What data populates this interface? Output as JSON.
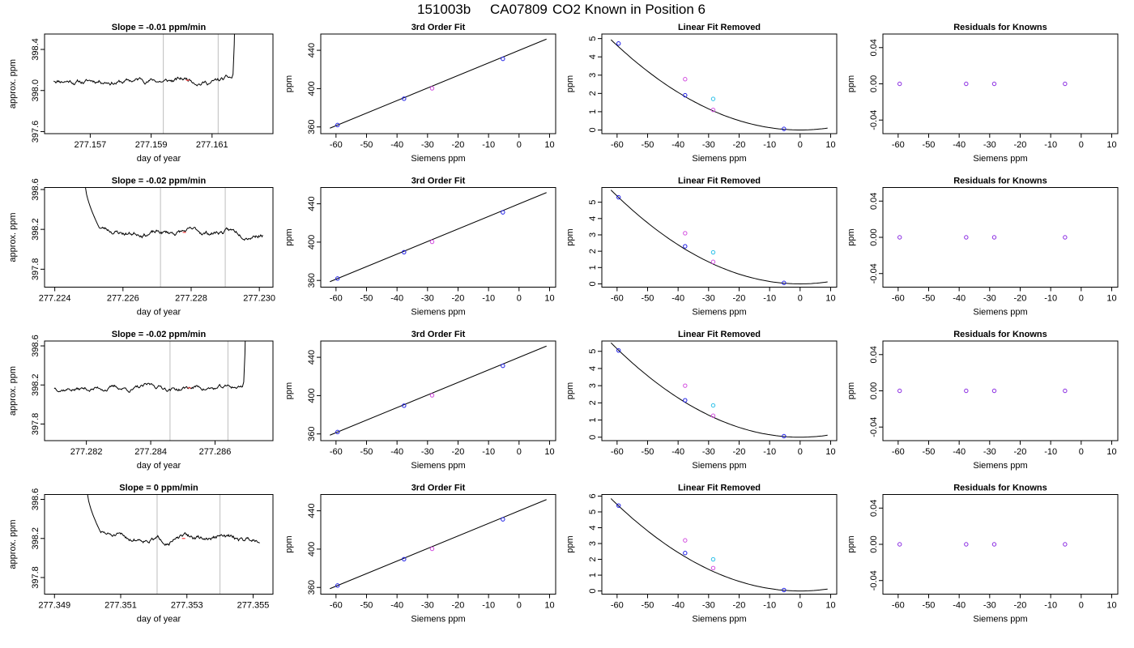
{
  "page": {
    "title_parts": [
      "151003b",
      "CA07809",
      "CO2 Known in Position  6"
    ]
  },
  "colors": {
    "point_blue": "#1f1fe6",
    "point_magenta": "#d34fe0",
    "point_cyan": "#2bc0e8",
    "point_purple": "#8a2be2",
    "point_red": "#ff4040",
    "time_line": "#000000",
    "vline": "#bdbdbd",
    "fit_line": "#000000"
  },
  "chart_data": [
    {
      "type": "line",
      "role": "timeseries",
      "row": 0,
      "title": "Slope =  -0.01  ppm/min",
      "xlabel": "day of year",
      "ylabel": "approx. ppm",
      "xlim": [
        277.1555,
        277.163
      ],
      "ylim": [
        397.58,
        398.55
      ],
      "xticks": [
        277.157,
        277.159,
        277.161
      ],
      "xtick_decimals": 3,
      "yticks": [
        397.6,
        398.0,
        398.4
      ],
      "ytick_decimals": 1,
      "x_start": 277.1558,
      "x_end": 277.1618,
      "baseline": 398.1,
      "vlines": [
        277.1594,
        277.1612
      ],
      "red_marks": [
        277.1602
      ],
      "end_spike": {
        "x_rise_start": 277.16165,
        "y_peak": 398.55
      },
      "start_spike": null,
      "seed": 11
    },
    {
      "type": "scatter",
      "role": "fit",
      "row": 0,
      "title": "3rd Order Fit",
      "xlabel": "Siemens ppm",
      "ylabel": "ppm",
      "xlim": [
        -65,
        12
      ],
      "ylim": [
        353,
        457
      ],
      "xticks": [
        -60,
        -50,
        -40,
        -30,
        -20,
        -10,
        0,
        10
      ],
      "yticks": [
        360,
        400,
        440
      ],
      "line": {
        "x": [
          -62,
          9
        ],
        "y": [
          358.7,
          451.7
        ]
      },
      "points": [
        {
          "x": -59.5,
          "y": 362.0,
          "color": "point_blue"
        },
        {
          "x": -37.7,
          "y": 389.5,
          "color": "point_blue"
        },
        {
          "x": -28.5,
          "y": 400.3,
          "color": "point_magenta"
        },
        {
          "x": -5.3,
          "y": 431.1,
          "color": "point_blue"
        }
      ]
    },
    {
      "type": "scatter",
      "role": "linear_removed",
      "row": 0,
      "title": "Linear Fit Removed",
      "xlabel": "Siemens ppm",
      "ylabel": "ppm",
      "xlim": [
        -65,
        12
      ],
      "ylim": [
        -0.2,
        5.25
      ],
      "xticks": [
        -60,
        -50,
        -40,
        -30,
        -20,
        -10,
        0,
        10
      ],
      "yticks": [
        0,
        1,
        2,
        3,
        4,
        5
      ],
      "curve": {
        "x0": 0,
        "a": 0.001285,
        "x_from": -62,
        "x_to": 9
      },
      "points": [
        {
          "x": -59.5,
          "y": 4.73,
          "color": "point_blue"
        },
        {
          "x": -37.7,
          "y": 1.9,
          "color": "point_blue"
        },
        {
          "x": -37.7,
          "y": 2.78,
          "color": "point_magenta"
        },
        {
          "x": -28.5,
          "y": 1.7,
          "color": "point_cyan"
        },
        {
          "x": -28.5,
          "y": 1.1,
          "color": "point_magenta"
        },
        {
          "x": -5.3,
          "y": 0.06,
          "color": "point_blue"
        }
      ]
    },
    {
      "type": "scatter",
      "role": "residuals",
      "row": 0,
      "title": "Residuals for Knowns",
      "xlabel": "Siemens ppm",
      "ylabel": "ppm",
      "xlim": [
        -65,
        12
      ],
      "ylim": [
        -0.055,
        0.055
      ],
      "xticks": [
        -60,
        -50,
        -40,
        -30,
        -20,
        -10,
        0,
        10
      ],
      "yticks": [
        -0.04,
        0.0,
        0.04
      ],
      "ytick_decimals": 2,
      "points": [
        {
          "x": -59.5,
          "y": 0,
          "color": "point_purple"
        },
        {
          "x": -37.7,
          "y": 0,
          "color": "point_purple"
        },
        {
          "x": -28.5,
          "y": 0,
          "color": "point_purple"
        },
        {
          "x": -5.3,
          "y": 0,
          "color": "point_purple"
        }
      ]
    },
    {
      "type": "line",
      "role": "timeseries",
      "row": 1,
      "title": "Slope =  -0.02  ppm/min",
      "xlabel": "day of year",
      "ylabel": "approx. ppm",
      "xlim": [
        277.2237,
        277.2304
      ],
      "ylim": [
        397.62,
        398.62
      ],
      "xticks": [
        277.224,
        277.226,
        277.228,
        277.23
      ],
      "xtick_decimals": 3,
      "yticks": [
        397.8,
        398.2,
        398.6
      ],
      "ytick_decimals": 1,
      "x_start": 277.2252,
      "x_end": 277.2301,
      "baseline": 398.17,
      "vlines": [
        277.2271,
        277.229
      ],
      "red_marks": [
        277.2278
      ],
      "end_spike": null,
      "start_spike": {
        "x_top": 277.2249,
        "y_top": 398.62,
        "x_bottom": 277.2253,
        "y_bottom": 398.22
      },
      "seed": 23
    },
    {
      "type": "scatter",
      "role": "fit",
      "row": 1,
      "title": "3rd Order Fit",
      "xlabel": "Siemens ppm",
      "ylabel": "ppm",
      "xlim": [
        -65,
        12
      ],
      "ylim": [
        353,
        457
      ],
      "xticks": [
        -60,
        -50,
        -40,
        -30,
        -20,
        -10,
        0,
        10
      ],
      "yticks": [
        360,
        400,
        440
      ],
      "line": {
        "x": [
          -62,
          9
        ],
        "y": [
          358.7,
          451.7
        ]
      },
      "points": [
        {
          "x": -59.5,
          "y": 362.0,
          "color": "point_blue"
        },
        {
          "x": -37.7,
          "y": 389.5,
          "color": "point_blue"
        },
        {
          "x": -28.5,
          "y": 400.3,
          "color": "point_magenta"
        },
        {
          "x": -5.3,
          "y": 431.1,
          "color": "point_blue"
        }
      ]
    },
    {
      "type": "scatter",
      "role": "linear_removed",
      "row": 1,
      "title": "Linear Fit Removed",
      "xlabel": "Siemens ppm",
      "ylabel": "ppm",
      "xlim": [
        -65,
        12
      ],
      "ylim": [
        -0.2,
        5.9
      ],
      "xticks": [
        -60,
        -50,
        -40,
        -30,
        -20,
        -10,
        0,
        10
      ],
      "yticks": [
        0,
        1,
        2,
        3,
        4,
        5
      ],
      "curve": {
        "x0": 0,
        "a": 0.001495,
        "x_from": -62,
        "x_to": 9
      },
      "points": [
        {
          "x": -59.5,
          "y": 5.3,
          "color": "point_blue"
        },
        {
          "x": -37.7,
          "y": 2.3,
          "color": "point_blue"
        },
        {
          "x": -37.7,
          "y": 3.1,
          "color": "point_magenta"
        },
        {
          "x": -28.5,
          "y": 1.93,
          "color": "point_cyan"
        },
        {
          "x": -28.5,
          "y": 1.35,
          "color": "point_magenta"
        },
        {
          "x": -5.3,
          "y": 0.06,
          "color": "point_blue"
        }
      ]
    },
    {
      "type": "scatter",
      "role": "residuals",
      "row": 1,
      "title": "Residuals for Knowns",
      "xlabel": "Siemens ppm",
      "ylabel": "ppm",
      "xlim": [
        -65,
        12
      ],
      "ylim": [
        -0.055,
        0.055
      ],
      "xticks": [
        -60,
        -50,
        -40,
        -30,
        -20,
        -10,
        0,
        10
      ],
      "yticks": [
        -0.04,
        0.0,
        0.04
      ],
      "ytick_decimals": 2,
      "points": [
        {
          "x": -59.5,
          "y": 0,
          "color": "point_purple"
        },
        {
          "x": -37.7,
          "y": 0,
          "color": "point_purple"
        },
        {
          "x": -28.5,
          "y": 0,
          "color": "point_purple"
        },
        {
          "x": -5.3,
          "y": 0,
          "color": "point_purple"
        }
      ]
    },
    {
      "type": "line",
      "role": "timeseries",
      "row": 2,
      "title": "Slope =  -0.02  ppm/min",
      "xlabel": "day of year",
      "ylabel": "approx. ppm",
      "xlim": [
        277.2807,
        277.2878
      ],
      "ylim": [
        397.63,
        398.65
      ],
      "xticks": [
        277.282,
        277.284,
        277.286
      ],
      "xtick_decimals": 3,
      "yticks": [
        397.8,
        398.2,
        398.6
      ],
      "ytick_decimals": 1,
      "x_start": 277.281,
      "x_end": 277.2869,
      "baseline": 398.17,
      "vlines": [
        277.2846,
        277.2864
      ],
      "red_marks": [
        277.2852
      ],
      "end_spike": {
        "x_rise_start": 277.28685,
        "y_peak": 398.65
      },
      "start_spike": null,
      "seed": 37
    },
    {
      "type": "scatter",
      "role": "fit",
      "row": 2,
      "title": "3rd Order Fit",
      "xlabel": "Siemens ppm",
      "ylabel": "ppm",
      "xlim": [
        -65,
        12
      ],
      "ylim": [
        353,
        457
      ],
      "xticks": [
        -60,
        -50,
        -40,
        -30,
        -20,
        -10,
        0,
        10
      ],
      "yticks": [
        360,
        400,
        440
      ],
      "line": {
        "x": [
          -62,
          9
        ],
        "y": [
          358.7,
          451.7
        ]
      },
      "points": [
        {
          "x": -59.5,
          "y": 362.0,
          "color": "point_blue"
        },
        {
          "x": -37.7,
          "y": 389.5,
          "color": "point_blue"
        },
        {
          "x": -28.5,
          "y": 400.3,
          "color": "point_magenta"
        },
        {
          "x": -5.3,
          "y": 431.1,
          "color": "point_blue"
        }
      ]
    },
    {
      "type": "scatter",
      "role": "linear_removed",
      "row": 2,
      "title": "Linear Fit Removed",
      "xlabel": "Siemens ppm",
      "ylabel": "ppm",
      "xlim": [
        -65,
        12
      ],
      "ylim": [
        -0.2,
        5.6
      ],
      "xticks": [
        -60,
        -50,
        -40,
        -30,
        -20,
        -10,
        0,
        10
      ],
      "yticks": [
        0,
        1,
        2,
        3,
        4,
        5
      ],
      "curve": {
        "x0": 0,
        "a": 0.00143,
        "x_from": -62,
        "x_to": 9
      },
      "points": [
        {
          "x": -59.5,
          "y": 5.05,
          "color": "point_blue"
        },
        {
          "x": -37.7,
          "y": 2.15,
          "color": "point_blue"
        },
        {
          "x": -37.7,
          "y": 3.0,
          "color": "point_magenta"
        },
        {
          "x": -28.5,
          "y": 1.85,
          "color": "point_cyan"
        },
        {
          "x": -28.5,
          "y": 1.25,
          "color": "point_magenta"
        },
        {
          "x": -5.3,
          "y": 0.06,
          "color": "point_blue"
        }
      ]
    },
    {
      "type": "scatter",
      "role": "residuals",
      "row": 2,
      "title": "Residuals for Knowns",
      "xlabel": "Siemens ppm",
      "ylabel": "ppm",
      "xlim": [
        -65,
        12
      ],
      "ylim": [
        -0.055,
        0.055
      ],
      "xticks": [
        -60,
        -50,
        -40,
        -30,
        -20,
        -10,
        0,
        10
      ],
      "yticks": [
        -0.04,
        0.0,
        0.04
      ],
      "ytick_decimals": 2,
      "points": [
        {
          "x": -59.5,
          "y": 0,
          "color": "point_purple"
        },
        {
          "x": -37.7,
          "y": 0,
          "color": "point_purple"
        },
        {
          "x": -28.5,
          "y": 0,
          "color": "point_purple"
        },
        {
          "x": -5.3,
          "y": 0,
          "color": "point_purple"
        }
      ]
    },
    {
      "type": "line",
      "role": "timeseries",
      "row": 3,
      "title": "Slope =  0  ppm/min",
      "xlabel": "day of year",
      "ylabel": "approx. ppm",
      "xlim": [
        277.3487,
        277.3556
      ],
      "ylim": [
        397.63,
        398.65
      ],
      "xticks": [
        277.349,
        277.351,
        277.353,
        277.355
      ],
      "xtick_decimals": 3,
      "yticks": [
        397.8,
        398.2,
        398.6
      ],
      "ytick_decimals": 1,
      "x_start": 277.3503,
      "x_end": 277.3552,
      "baseline": 398.2,
      "vlines": [
        277.3521,
        277.354
      ],
      "red_marks": [
        277.3529
      ],
      "end_spike": null,
      "start_spike": {
        "x_top": 277.35,
        "y_top": 398.65,
        "x_bottom": 277.3504,
        "y_bottom": 398.26
      },
      "seed": 51
    },
    {
      "type": "scatter",
      "role": "fit",
      "row": 3,
      "title": "3rd Order Fit",
      "xlabel": "Siemens ppm",
      "ylabel": "ppm",
      "xlim": [
        -65,
        12
      ],
      "ylim": [
        353,
        457
      ],
      "xticks": [
        -60,
        -50,
        -40,
        -30,
        -20,
        -10,
        0,
        10
      ],
      "yticks": [
        360,
        400,
        440
      ],
      "line": {
        "x": [
          -62,
          9
        ],
        "y": [
          358.7,
          451.7
        ]
      },
      "points": [
        {
          "x": -59.5,
          "y": 362.0,
          "color": "point_blue"
        },
        {
          "x": -37.7,
          "y": 389.5,
          "color": "point_blue"
        },
        {
          "x": -28.5,
          "y": 400.3,
          "color": "point_magenta"
        },
        {
          "x": -5.3,
          "y": 431.1,
          "color": "point_blue"
        }
      ]
    },
    {
      "type": "scatter",
      "role": "linear_removed",
      "row": 3,
      "title": "Linear Fit Removed",
      "xlabel": "Siemens ppm",
      "ylabel": "ppm",
      "xlim": [
        -65,
        12
      ],
      "ylim": [
        -0.2,
        6.1
      ],
      "xticks": [
        -60,
        -50,
        -40,
        -30,
        -20,
        -10,
        0,
        10
      ],
      "yticks": [
        0,
        1,
        2,
        3,
        4,
        5,
        6
      ],
      "curve": {
        "x0": 0,
        "a": 0.00152,
        "x_from": -62,
        "x_to": 9
      },
      "points": [
        {
          "x": -59.5,
          "y": 5.4,
          "color": "point_blue"
        },
        {
          "x": -37.7,
          "y": 2.4,
          "color": "point_blue"
        },
        {
          "x": -37.7,
          "y": 3.2,
          "color": "point_magenta"
        },
        {
          "x": -28.5,
          "y": 2.0,
          "color": "point_cyan"
        },
        {
          "x": -28.5,
          "y": 1.45,
          "color": "point_magenta"
        },
        {
          "x": -5.3,
          "y": 0.06,
          "color": "point_blue"
        }
      ]
    },
    {
      "type": "scatter",
      "role": "residuals",
      "row": 3,
      "title": "Residuals for Knowns",
      "xlabel": "Siemens ppm",
      "ylabel": "ppm",
      "xlim": [
        -65,
        12
      ],
      "ylim": [
        -0.055,
        0.055
      ],
      "xticks": [
        -60,
        -50,
        -40,
        -30,
        -20,
        -10,
        0,
        10
      ],
      "yticks": [
        -0.04,
        0.0,
        0.04
      ],
      "ytick_decimals": 2,
      "points": [
        {
          "x": -59.5,
          "y": 0,
          "color": "point_purple"
        },
        {
          "x": -37.7,
          "y": 0,
          "color": "point_purple"
        },
        {
          "x": -28.5,
          "y": 0,
          "color": "point_purple"
        },
        {
          "x": -5.3,
          "y": 0,
          "color": "point_purple"
        }
      ]
    }
  ]
}
